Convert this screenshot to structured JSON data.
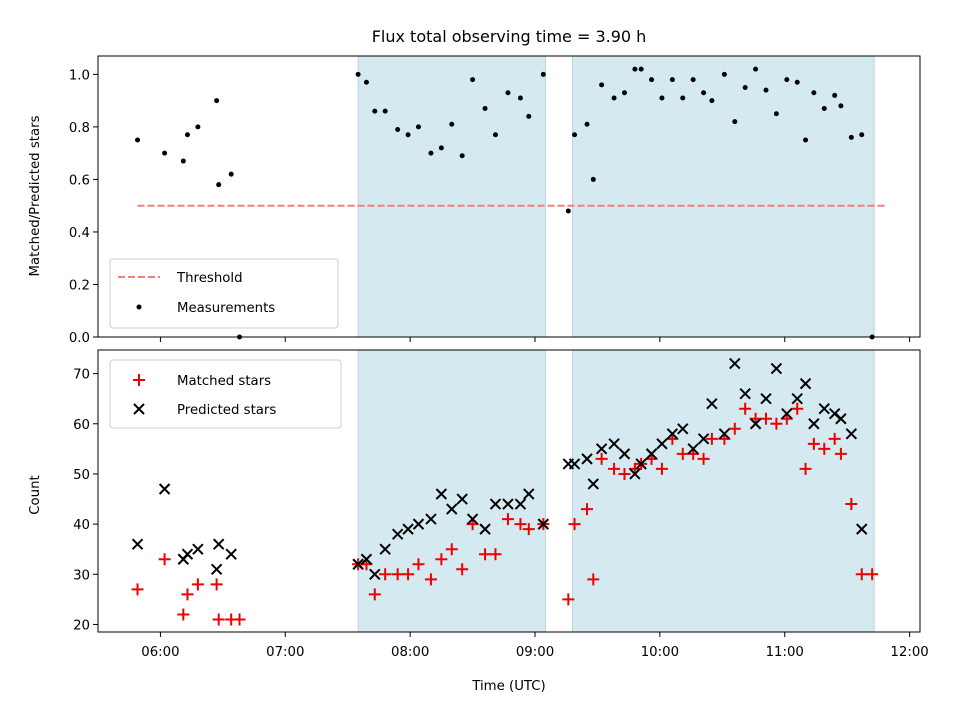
{
  "chart_data": [
    {
      "type": "scatter",
      "title": "Flux total observing time = 3.90 h",
      "xlabel": "",
      "ylabel": "Matched/Predicted stars",
      "ylim": [
        0.0,
        1.07
      ],
      "yticks": [
        "0.0",
        "0.2",
        "0.4",
        "0.6",
        "0.8",
        "1.0"
      ],
      "xlim": [
        "05:30",
        "12:05"
      ],
      "shaded_intervals": [
        [
          "07:35",
          "09:05"
        ],
        [
          "09:18",
          "11:43"
        ]
      ],
      "shade_color": "#d4eaf0",
      "threshold": {
        "name": "Threshold",
        "value": 0.5,
        "x": [
          "05:49",
          "11:49"
        ],
        "color": "#f08080",
        "style": "dashed"
      },
      "series": [
        {
          "name": "Measurements",
          "color": "#000000",
          "marker": "dot",
          "points": [
            [
              "05:49",
              0.75
            ],
            [
              "06:02",
              0.7
            ],
            [
              "06:11",
              0.67
            ],
            [
              "06:13",
              0.77
            ],
            [
              "06:18",
              0.8
            ],
            [
              "06:27",
              0.9
            ],
            [
              "06:28",
              0.58
            ],
            [
              "06:34",
              0.62
            ],
            [
              "06:38",
              0.0
            ],
            [
              "07:35",
              1.0
            ],
            [
              "07:39",
              0.97
            ],
            [
              "07:43",
              0.86
            ],
            [
              "07:48",
              0.86
            ],
            [
              "07:54",
              0.79
            ],
            [
              "07:59",
              0.77
            ],
            [
              "08:04",
              0.8
            ],
            [
              "08:10",
              0.7
            ],
            [
              "08:15",
              0.72
            ],
            [
              "08:20",
              0.81
            ],
            [
              "08:25",
              0.69
            ],
            [
              "08:30",
              0.98
            ],
            [
              "08:36",
              0.87
            ],
            [
              "08:41",
              0.77
            ],
            [
              "08:47",
              0.93
            ],
            [
              "08:53",
              0.91
            ],
            [
              "08:57",
              0.84
            ],
            [
              "09:04",
              1.0
            ],
            [
              "09:16",
              0.48
            ],
            [
              "09:19",
              0.77
            ],
            [
              "09:25",
              0.81
            ],
            [
              "09:28",
              0.6
            ],
            [
              "09:32",
              0.96
            ],
            [
              "09:38",
              0.91
            ],
            [
              "09:43",
              0.93
            ],
            [
              "09:48",
              1.02
            ],
            [
              "09:51",
              1.02
            ],
            [
              "09:56",
              0.98
            ],
            [
              "10:01",
              0.91
            ],
            [
              "10:06",
              0.98
            ],
            [
              "10:11",
              0.91
            ],
            [
              "10:16",
              0.98
            ],
            [
              "10:21",
              0.93
            ],
            [
              "10:25",
              0.9
            ],
            [
              "10:31",
              1.0
            ],
            [
              "10:36",
              0.82
            ],
            [
              "10:41",
              0.95
            ],
            [
              "10:46",
              1.02
            ],
            [
              "10:51",
              0.94
            ],
            [
              "10:56",
              0.85
            ],
            [
              "11:01",
              0.98
            ],
            [
              "11:06",
              0.97
            ],
            [
              "11:10",
              0.75
            ],
            [
              "11:14",
              0.93
            ],
            [
              "11:19",
              0.87
            ],
            [
              "11:24",
              0.92
            ],
            [
              "11:27",
              0.88
            ],
            [
              "11:32",
              0.76
            ],
            [
              "11:37",
              0.77
            ],
            [
              "11:42",
              0.0
            ]
          ]
        }
      ],
      "legend": {
        "placement": "lower-left",
        "entries": [
          "Threshold",
          "Measurements"
        ]
      },
      "grid": false
    },
    {
      "type": "scatter",
      "title": "",
      "xlabel": "Time (UTC)",
      "ylabel": "Count",
      "ylim": [
        18.5,
        74.7
      ],
      "yticks": [
        "20",
        "30",
        "40",
        "50",
        "60",
        "70"
      ],
      "xlim": [
        "05:30",
        "12:05"
      ],
      "xticks": [
        "06:00",
        "07:00",
        "08:00",
        "09:00",
        "10:00",
        "11:00",
        "12:00"
      ],
      "shaded_intervals": [
        [
          "07:35",
          "09:05"
        ],
        [
          "09:18",
          "11:43"
        ]
      ],
      "shade_color": "#d4eaf0",
      "series": [
        {
          "name": "Matched stars",
          "color": "#ee0000",
          "marker": "plus",
          "points": [
            [
              "05:49",
              27
            ],
            [
              "06:02",
              33
            ],
            [
              "06:11",
              22
            ],
            [
              "06:13",
              26
            ],
            [
              "06:18",
              28
            ],
            [
              "06:27",
              28
            ],
            [
              "06:28",
              21
            ],
            [
              "06:34",
              21
            ],
            [
              "06:38",
              21
            ],
            [
              "07:35",
              32
            ],
            [
              "07:39",
              32
            ],
            [
              "07:43",
              26
            ],
            [
              "07:48",
              30
            ],
            [
              "07:54",
              30
            ],
            [
              "07:59",
              30
            ],
            [
              "08:04",
              32
            ],
            [
              "08:10",
              29
            ],
            [
              "08:15",
              33
            ],
            [
              "08:20",
              35
            ],
            [
              "08:25",
              31
            ],
            [
              "08:30",
              40
            ],
            [
              "08:36",
              34
            ],
            [
              "08:41",
              34
            ],
            [
              "08:47",
              41
            ],
            [
              "08:53",
              40
            ],
            [
              "08:57",
              39
            ],
            [
              "09:04",
              40
            ],
            [
              "09:16",
              25
            ],
            [
              "09:19",
              40
            ],
            [
              "09:25",
              43
            ],
            [
              "09:28",
              29
            ],
            [
              "09:32",
              53
            ],
            [
              "09:38",
              51
            ],
            [
              "09:43",
              50
            ],
            [
              "09:48",
              51
            ],
            [
              "09:51",
              52
            ],
            [
              "09:56",
              53
            ],
            [
              "10:01",
              51
            ],
            [
              "10:06",
              57
            ],
            [
              "10:11",
              54
            ],
            [
              "10:16",
              54
            ],
            [
              "10:21",
              53
            ],
            [
              "10:25",
              57
            ],
            [
              "10:31",
              57
            ],
            [
              "10:36",
              59
            ],
            [
              "10:41",
              63
            ],
            [
              "10:46",
              61
            ],
            [
              "10:51",
              61
            ],
            [
              "10:56",
              60
            ],
            [
              "11:01",
              61
            ],
            [
              "11:06",
              63
            ],
            [
              "11:10",
              51
            ],
            [
              "11:14",
              56
            ],
            [
              "11:19",
              55
            ],
            [
              "11:24",
              57
            ],
            [
              "11:27",
              54
            ],
            [
              "11:32",
              44
            ],
            [
              "11:37",
              30
            ],
            [
              "11:42",
              30
            ]
          ]
        },
        {
          "name": "Predicted stars",
          "color": "#000000",
          "marker": "x",
          "points": [
            [
              "05:49",
              36
            ],
            [
              "06:02",
              47
            ],
            [
              "06:11",
              33
            ],
            [
              "06:13",
              34
            ],
            [
              "06:18",
              35
            ],
            [
              "06:27",
              31
            ],
            [
              "06:28",
              36
            ],
            [
              "06:34",
              34
            ],
            [
              "07:35",
              32
            ],
            [
              "07:39",
              33
            ],
            [
              "07:43",
              30
            ],
            [
              "07:48",
              35
            ],
            [
              "07:54",
              38
            ],
            [
              "07:59",
              39
            ],
            [
              "08:04",
              40
            ],
            [
              "08:10",
              41
            ],
            [
              "08:15",
              46
            ],
            [
              "08:20",
              43
            ],
            [
              "08:25",
              45
            ],
            [
              "08:30",
              41
            ],
            [
              "08:36",
              39
            ],
            [
              "08:41",
              44
            ],
            [
              "08:47",
              44
            ],
            [
              "08:53",
              44
            ],
            [
              "08:57",
              46
            ],
            [
              "09:04",
              40
            ],
            [
              "09:16",
              52
            ],
            [
              "09:19",
              52
            ],
            [
              "09:25",
              53
            ],
            [
              "09:28",
              48
            ],
            [
              "09:32",
              55
            ],
            [
              "09:38",
              56
            ],
            [
              "09:43",
              54
            ],
            [
              "09:48",
              50
            ],
            [
              "09:51",
              52
            ],
            [
              "09:56",
              54
            ],
            [
              "10:01",
              56
            ],
            [
              "10:06",
              58
            ],
            [
              "10:11",
              59
            ],
            [
              "10:16",
              55
            ],
            [
              "10:21",
              57
            ],
            [
              "10:25",
              64
            ],
            [
              "10:31",
              58
            ],
            [
              "10:36",
              72
            ],
            [
              "10:41",
              66
            ],
            [
              "10:46",
              60
            ],
            [
              "10:51",
              65
            ],
            [
              "10:56",
              71
            ],
            [
              "11:01",
              62
            ],
            [
              "11:06",
              65
            ],
            [
              "11:10",
              68
            ],
            [
              "11:14",
              60
            ],
            [
              "11:19",
              63
            ],
            [
              "11:24",
              62
            ],
            [
              "11:27",
              61
            ],
            [
              "11:32",
              58
            ],
            [
              "11:37",
              39
            ]
          ]
        }
      ],
      "legend": {
        "placement": "top-left",
        "entries": [
          "Matched stars",
          "Predicted stars"
        ]
      },
      "grid": false
    }
  ]
}
